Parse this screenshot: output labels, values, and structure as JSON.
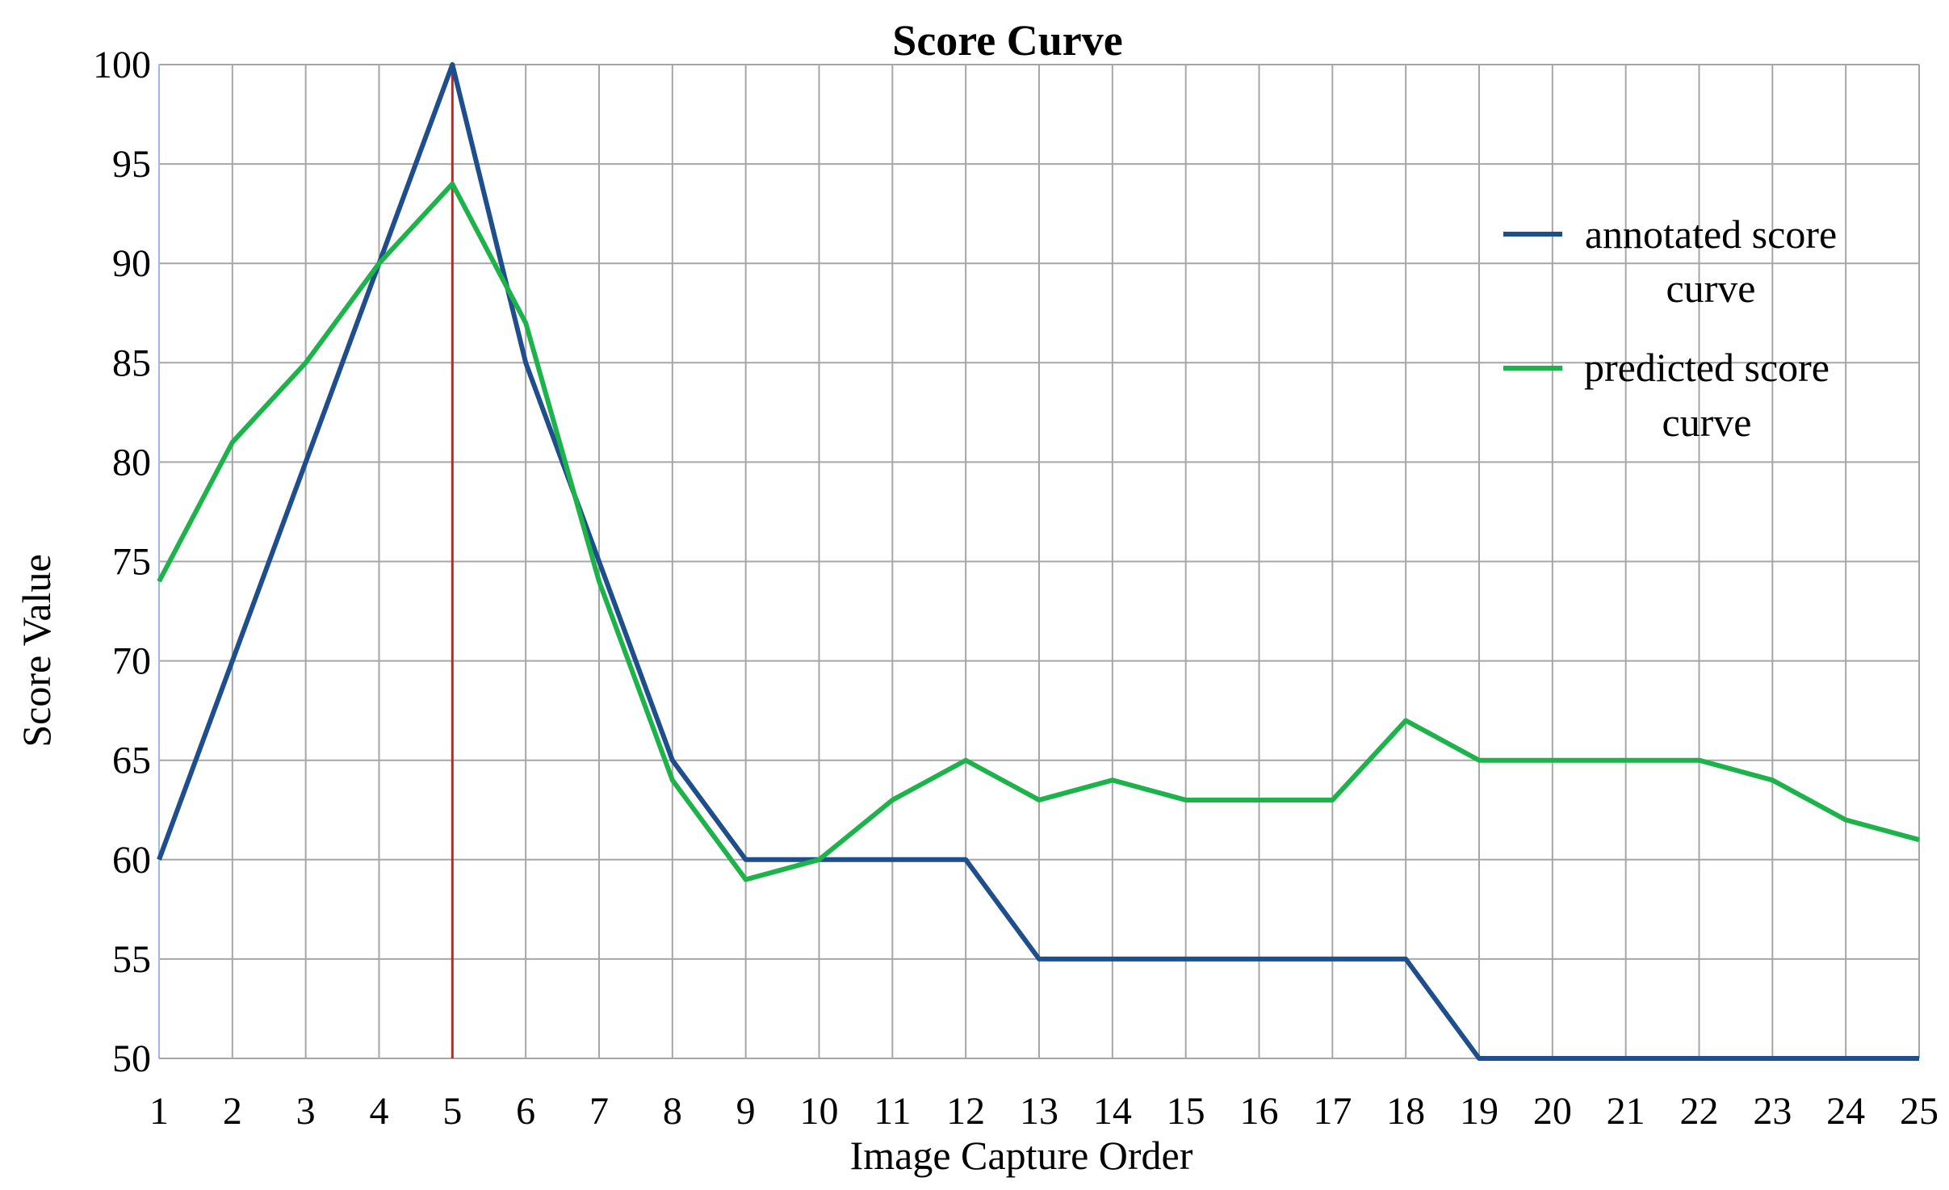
{
  "chart_data": {
    "type": "line",
    "title": "Score Curve",
    "xlabel": "Image Capture Order",
    "ylabel": "Score Value",
    "x": [
      1,
      2,
      3,
      4,
      5,
      6,
      7,
      8,
      9,
      10,
      11,
      12,
      13,
      14,
      15,
      16,
      17,
      18,
      19,
      20,
      21,
      22,
      23,
      24,
      25
    ],
    "ylim": [
      50,
      100
    ],
    "yticks": [
      50,
      55,
      60,
      65,
      70,
      75,
      80,
      85,
      90,
      95,
      100
    ],
    "grid": true,
    "legend_position": "top-right",
    "series": [
      {
        "name": "annotated score curve",
        "color": "#1f4e8c",
        "values": [
          60,
          70,
          80,
          90,
          100,
          85,
          75,
          65,
          60,
          60,
          60,
          60,
          55,
          55,
          55,
          55,
          55,
          55,
          50,
          50,
          50,
          50,
          50,
          50,
          50
        ]
      },
      {
        "name": "predicted score curve",
        "color": "#1db34a",
        "values": [
          74,
          81,
          85,
          90,
          94,
          87,
          74,
          64,
          59,
          60,
          63,
          65,
          63,
          64,
          63,
          63,
          63,
          67,
          65,
          65,
          65,
          65,
          64,
          62,
          61
        ]
      }
    ],
    "annotations": [
      {
        "type": "vertical-line",
        "x": 5,
        "color": "#cc2222"
      }
    ],
    "legend": {
      "items": [
        {
          "line1": "annotated score",
          "line2": "curve",
          "color": "#1f4e8c"
        },
        {
          "line1": "predicted score",
          "line2": "curve",
          "color": "#1db34a"
        }
      ]
    }
  }
}
